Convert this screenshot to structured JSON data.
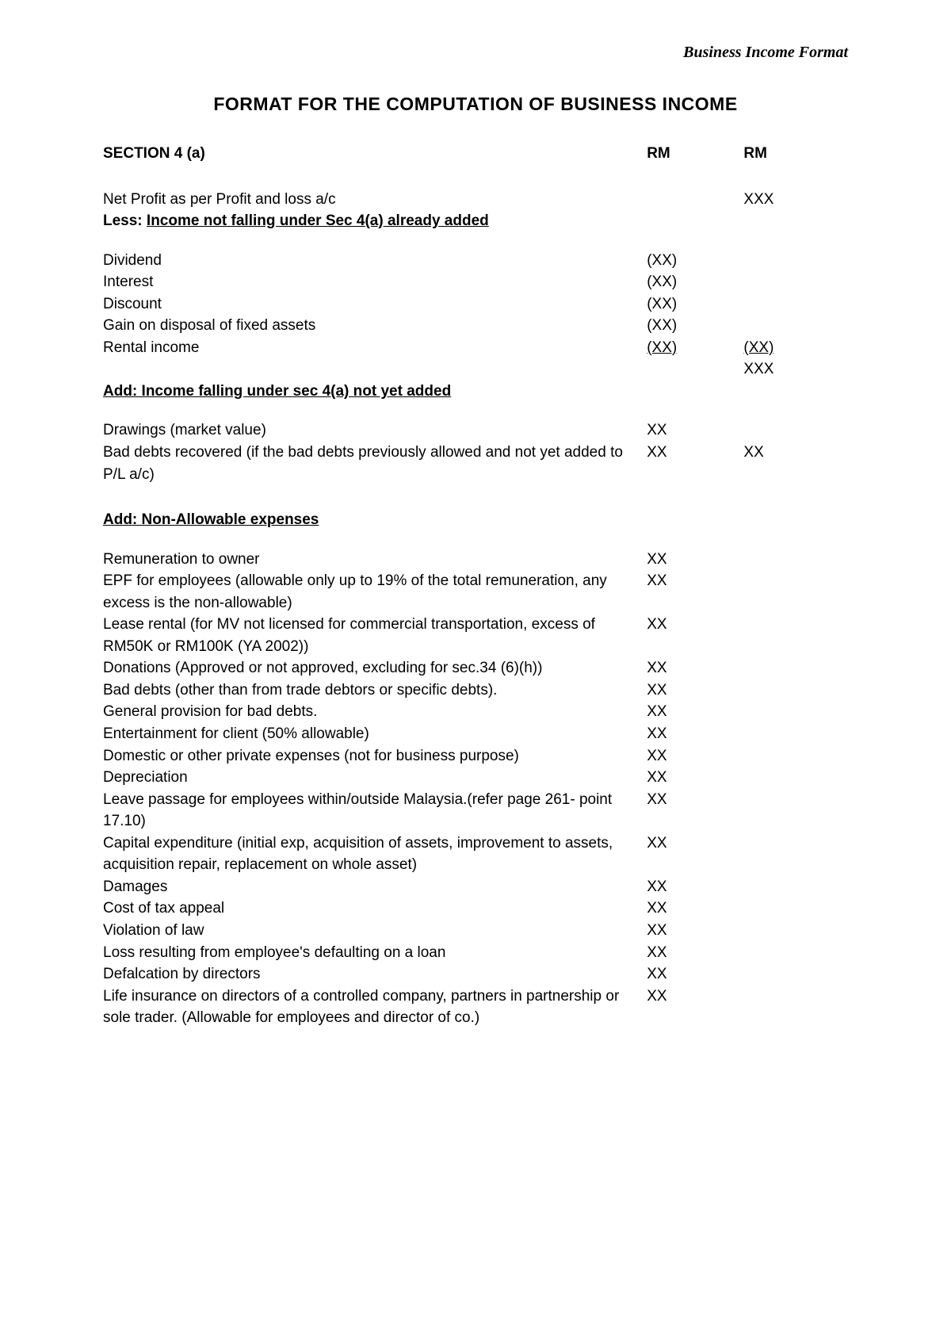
{
  "header": {
    "right_label": "Business Income Format"
  },
  "title": "FORMAT FOR THE COMPUTATION OF BUSINESS INCOME",
  "columns": {
    "col1": "RM",
    "col2": "RM"
  },
  "section_label": "SECTION 4 (a)",
  "lines": {
    "net_profit": {
      "desc": "Net Profit as per Profit and loss a/c",
      "v2": "XXX"
    },
    "less_heading": "Less: ",
    "less_heading_u": "Income not falling under Sec 4(a) already added",
    "dividend": {
      "desc": "Dividend",
      "v1": "(XX)"
    },
    "interest": {
      "desc": "Interest",
      "v1": "(XX)"
    },
    "discount": {
      "desc": "Discount",
      "v1": "(XX)"
    },
    "gain_disposal": {
      "desc": "Gain on disposal of fixed assets",
      "v1": "(XX)"
    },
    "rental": {
      "desc": "Rental income",
      "v1": "(XX)",
      "v2": "(XX)"
    },
    "subtotal_after_less": {
      "v2": "XXX"
    },
    "add1_heading": "Add: Income falling under sec 4(a) not yet added",
    "drawings": {
      "desc": "Drawings (market value)",
      "v1": "XX"
    },
    "bad_debts_recovered": {
      "desc": "Bad debts recovered (if the bad debts previously allowed and not yet added to P/L a/c)",
      "v1": "XX",
      "v2": "XX"
    },
    "add2_heading": "Add: Non-Allowable expenses",
    "remun_owner": {
      "desc": "Remuneration to owner",
      "v1": "XX"
    },
    "epf": {
      "desc": "EPF for employees (allowable only up to 19% of the total remuneration, any excess is the non-allowable)",
      "v1": "XX"
    },
    "lease_rental": {
      "desc": "Lease rental (for MV not licensed for commercial transportation, excess of RM50K or RM100K (YA 2002))",
      "v1": "XX"
    },
    "donations": {
      "desc": "Donations (Approved or not approved, excluding for sec.34 (6)(h))",
      "v1": "XX"
    },
    "bad_debts_other": {
      "desc": "Bad debts (other than from trade debtors or specific debts).",
      "v1": "XX"
    },
    "gen_prov": {
      "desc": "General provision for bad debts.",
      "v1": "XX"
    },
    "entertainment": {
      "desc": "Entertainment for client (50% allowable)",
      "v1": "XX"
    },
    "domestic": {
      "desc": "Domestic or other private expenses (not for business purpose)",
      "v1": "XX"
    },
    "depreciation": {
      "desc": "Depreciation",
      "v1": "XX"
    },
    "leave_passage": {
      "desc": "Leave passage for employees within/outside Malaysia.(refer page 261- point 17.10)",
      "v1": "XX"
    },
    "capex": {
      "desc": "Capital expenditure (initial exp, acquisition of assets, improvement to assets, acquisition repair, replacement on whole asset)",
      "v1": "XX"
    },
    "damages": {
      "desc": "Damages",
      "v1": "XX"
    },
    "tax_appeal": {
      "desc": "Cost of tax appeal",
      "v1": "XX"
    },
    "violation": {
      "desc": "Violation of law",
      "v1": "XX"
    },
    "loss_employee": {
      "desc": "Loss resulting from employee's defaulting on a loan",
      "v1": "XX"
    },
    "defalcation": {
      "desc": "Defalcation by directors",
      "v1": "XX"
    },
    "life_insurance": {
      "desc": "Life insurance on directors of a controlled company, partners in partnership or sole trader. (Allowable for employees and director of co.)",
      "v1": "XX"
    }
  }
}
